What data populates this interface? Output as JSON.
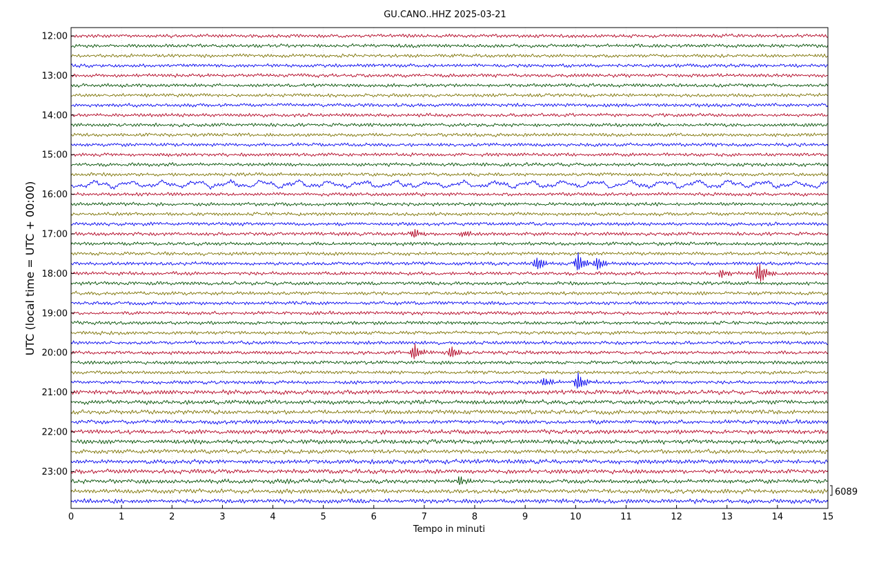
{
  "chart_data": {
    "type": "line",
    "title": "GU.CANO..HHZ 2025-03-21",
    "xlabel": "Tempo in minuti",
    "ylabel": "UTC (local time = UTC + 00:00)",
    "xlim": [
      0,
      15
    ],
    "x_ticks": [
      "0",
      "1",
      "2",
      "3",
      "4",
      "5",
      "6",
      "7",
      "8",
      "9",
      "10",
      "11",
      "12",
      "13",
      "14",
      "15"
    ],
    "y_ticks": [
      "12:00",
      "13:00",
      "14:00",
      "15:00",
      "16:00",
      "17:00",
      "18:00",
      "19:00",
      "20:00",
      "21:00",
      "22:00",
      "23:00"
    ],
    "trace_start": "12:00",
    "trace_minutes": 15,
    "trace_count": 48,
    "series_colors": [
      "#b00020",
      "#004d00",
      "#7a7000",
      "#0000ee"
    ],
    "scale_label": "6089",
    "grid": true,
    "events": [
      {
        "trace_start": "17:00",
        "minute": 6.8,
        "amplitude": 1.6
      },
      {
        "trace_start": "17:00",
        "minute": 7.8,
        "amplitude": 1.2
      },
      {
        "trace_start": "17:45",
        "minute": 9.25,
        "amplitude": 2.4
      },
      {
        "trace_start": "17:45",
        "minute": 10.05,
        "amplitude": 3.2
      },
      {
        "trace_start": "17:45",
        "minute": 10.45,
        "amplitude": 2.2
      },
      {
        "trace_start": "18:00",
        "minute": 12.9,
        "amplitude": 1.4
      },
      {
        "trace_start": "18:00",
        "minute": 13.65,
        "amplitude": 3.6
      },
      {
        "trace_start": "20:00",
        "minute": 6.8,
        "amplitude": 2.8
      },
      {
        "trace_start": "20:00",
        "minute": 7.55,
        "amplitude": 2.0
      },
      {
        "trace_start": "20:45",
        "minute": 9.4,
        "amplitude": 1.4
      },
      {
        "trace_start": "20:45",
        "minute": 10.05,
        "amplitude": 3.0
      },
      {
        "trace_start": "23:15",
        "minute": 7.7,
        "amplitude": 1.6
      }
    ]
  }
}
